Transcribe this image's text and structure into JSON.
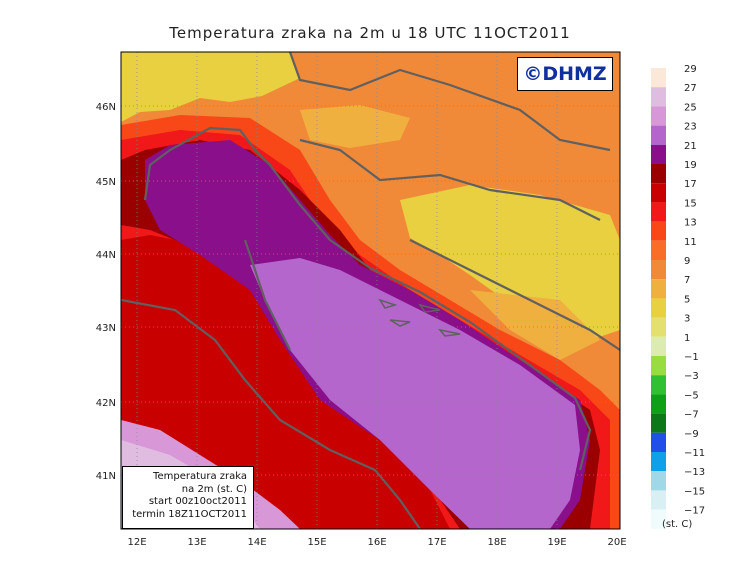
{
  "map": {
    "title": "Temperatura zraka na 2m u 18 UTC 11OCT2011",
    "logo": "©DHMZ",
    "lat_ticks": [
      "46N",
      "45N",
      "44N",
      "43N",
      "42N",
      "41N"
    ],
    "lon_ticks": [
      "12E",
      "13E",
      "14E",
      "15E",
      "16E",
      "17E",
      "18E",
      "19E",
      "20E"
    ],
    "info": {
      "line1": "Temperatura zraka",
      "line2": "na 2m (st. C)",
      "line3": "start 00z10oct2011",
      "line4": "termin 18Z11OCT2011"
    },
    "legend": {
      "unit": "(st. C)",
      "items": [
        {
          "label": "29",
          "color": "#fce8d8"
        },
        {
          "label": "27",
          "color": "#e0bce0"
        },
        {
          "label": "25",
          "color": "#d898d8"
        },
        {
          "label": "23",
          "color": "#b466cc"
        },
        {
          "label": "21",
          "color": "#8a0f8a"
        },
        {
          "label": "19",
          "color": "#9a0000"
        },
        {
          "label": "17",
          "color": "#c80000"
        },
        {
          "label": "15",
          "color": "#f01818"
        },
        {
          "label": "13",
          "color": "#f84818"
        },
        {
          "label": "11",
          "color": "#f86e28"
        },
        {
          "label": "9",
          "color": "#f08a38"
        },
        {
          "label": "7",
          "color": "#f0b040"
        },
        {
          "label": "5",
          "color": "#e8d040"
        },
        {
          "label": "3",
          "color": "#e4e070"
        },
        {
          "label": "1",
          "color": "#dcecb0"
        },
        {
          "label": "−1",
          "color": "#98dc40"
        },
        {
          "label": "−3",
          "color": "#30c030"
        },
        {
          "label": "−5",
          "color": "#10a018"
        },
        {
          "label": "−7",
          "color": "#0c7818"
        },
        {
          "label": "−9",
          "color": "#2050e8"
        },
        {
          "label": "−11",
          "color": "#10a0e8"
        },
        {
          "label": "−13",
          "color": "#a0d8e8"
        },
        {
          "label": "−15",
          "color": "#d8f0f4"
        },
        {
          "label": "−17",
          "color": "#f0fbfc"
        }
      ]
    }
  }
}
